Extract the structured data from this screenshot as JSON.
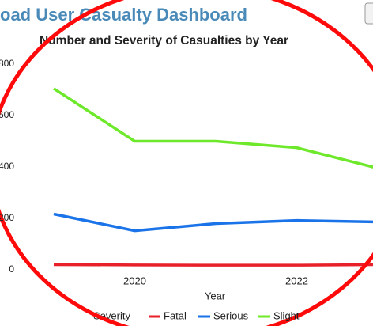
{
  "dashboard_title": "oad User Casualty Dashboard",
  "chart_data": {
    "type": "line",
    "title": "Number and Severity of Casualties by Year",
    "x_label": "Year",
    "legend_title": "Severity",
    "x": [
      2019,
      2020,
      2021,
      2022,
      2023
    ],
    "xlim": [
      2019,
      2023
    ],
    "xticks": [
      2020,
      2022
    ],
    "ylim": [
      0,
      800
    ],
    "yticks": [
      0,
      200,
      400,
      600,
      800
    ],
    "grid": false,
    "legend": "bottom",
    "series": [
      {
        "name": "Fatal",
        "color": "#e8202a",
        "values": [
          20,
          19,
          18,
          18,
          20
        ]
      },
      {
        "name": "Serious",
        "color": "#1a73e8",
        "values": [
          217,
          152,
          180,
          192,
          186
        ]
      },
      {
        "name": "Slight",
        "color": "#6ee82a",
        "values": [
          705,
          500,
          500,
          475,
          395
        ]
      }
    ]
  }
}
